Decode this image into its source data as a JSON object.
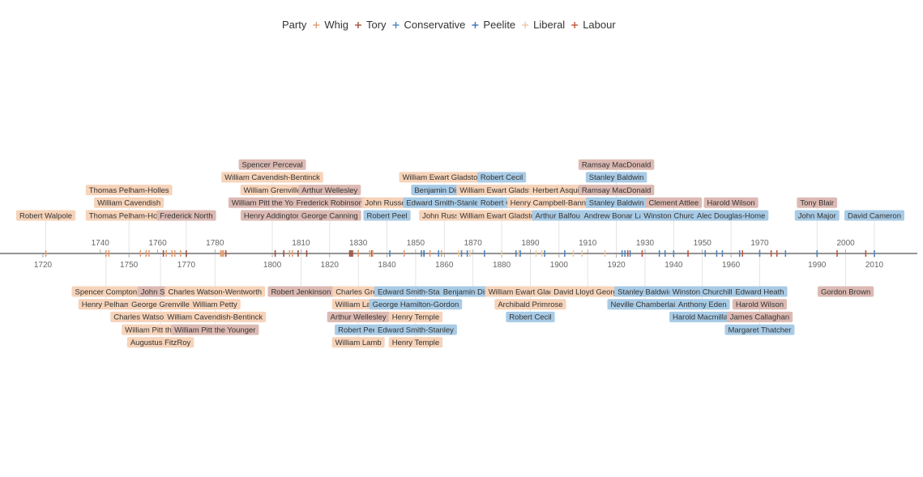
{
  "chart_data": {
    "type": "timeline",
    "title": "",
    "xlabel": "",
    "ylabel": "",
    "xlim": [
      1712,
      2019
    ],
    "grid": false,
    "legend": {
      "title": "Party",
      "placement": "top-center",
      "entries": [
        {
          "name": "Whig",
          "color": "#E39C70"
        },
        {
          "name": "Tory",
          "color": "#A0523F"
        },
        {
          "name": "Conservative",
          "color": "#4E86C0"
        },
        {
          "name": "Peelite",
          "color": "#3F74B3"
        },
        {
          "name": "Liberal",
          "color": "#F2C69C"
        },
        {
          "name": "Labour",
          "color": "#C0553B"
        }
      ]
    },
    "party_fill": {
      "Whig": "#F6D3B9",
      "Tory": "#DCBAB3",
      "Conservative": "#A8CBE6",
      "Peelite": "#A8CBE6",
      "Liberal": "#F6D3B9",
      "Labour": "#DCBAB3"
    },
    "ticks_top": [
      1740,
      1760,
      1780,
      1810,
      1830,
      1850,
      1870,
      1890,
      1910,
      1930,
      1950,
      1970,
      2000
    ],
    "ticks_bottom": [
      1720,
      1750,
      1770,
      1800,
      1820,
      1840,
      1860,
      1880,
      1900,
      1920,
      1940,
      1960,
      1990,
      2010
    ],
    "groups": [
      {
        "year": 1721,
        "side": "above",
        "names": [
          {
            "name": "Robert Walpole",
            "party": "Whig"
          }
        ]
      },
      {
        "year": 1742,
        "side": "below",
        "names": [
          {
            "name": "Spencer Compton",
            "party": "Whig"
          },
          {
            "name": "Henry Pelham",
            "party": "Whig"
          }
        ]
      },
      {
        "year": 1750,
        "side": "above",
        "names": [
          {
            "name": "Thomas Pelham-Holles",
            "party": "Whig"
          },
          {
            "name": "William Cavendish",
            "party": "Whig"
          },
          {
            "name": "Thomas Pelham-Holles",
            "party": "Whig"
          }
        ]
      },
      {
        "year": 1761,
        "side": "below",
        "names": [
          {
            "name": "John Stuart",
            "party": "Tory"
          },
          {
            "name": "George Grenville",
            "party": "Whig"
          },
          {
            "name": "Charles Watson-Wentworth",
            "party": "Whig"
          },
          {
            "name": "William Pitt the Elder",
            "party": "Whig"
          },
          {
            "name": "Augustus FitzRoy",
            "party": "Whig"
          }
        ]
      },
      {
        "year": 1770,
        "side": "above",
        "names": [
          {
            "name": "Frederick North",
            "party": "Tory"
          }
        ]
      },
      {
        "year": 1780,
        "side": "below",
        "names": [
          {
            "name": "Charles Watson-Wentworth",
            "party": "Whig"
          },
          {
            "name": "William Petty",
            "party": "Whig"
          },
          {
            "name": "William Cavendish-Bentinck",
            "party": "Whig"
          },
          {
            "name": "William Pitt the Younger",
            "party": "Tory"
          }
        ]
      },
      {
        "year": 1800,
        "side": "above",
        "names": [
          {
            "name": "Spencer Perceval",
            "party": "Tory"
          },
          {
            "name": "William Cavendish-Bentinck",
            "party": "Whig"
          },
          {
            "name": "William Grenville",
            "party": "Whig"
          },
          {
            "name": "William Pitt the Younger",
            "party": "Tory"
          },
          {
            "name": "Henry Addington",
            "party": "Tory"
          }
        ]
      },
      {
        "year": 1810,
        "side": "below",
        "names": [
          {
            "name": "Robert Jenkinson",
            "party": "Tory"
          }
        ]
      },
      {
        "year": 1820,
        "side": "above",
        "names": [
          {
            "name": "Arthur Wellesley",
            "party": "Tory"
          },
          {
            "name": "Frederick Robinson",
            "party": "Tory"
          },
          {
            "name": "George Canning",
            "party": "Tory"
          }
        ]
      },
      {
        "year": 1830,
        "side": "below",
        "names": [
          {
            "name": "Charles Grey",
            "party": "Whig"
          },
          {
            "name": "William Lamb",
            "party": "Whig"
          },
          {
            "name": "Arthur Wellesley",
            "party": "Tory"
          },
          {
            "name": "Robert Peel",
            "party": "Conservative"
          },
          {
            "name": "William Lamb",
            "party": "Whig"
          }
        ]
      },
      {
        "year": 1840,
        "side": "above",
        "names": [
          {
            "name": "John Russell",
            "party": "Whig"
          },
          {
            "name": "Robert Peel",
            "party": "Conservative"
          }
        ]
      },
      {
        "year": 1850,
        "side": "below",
        "names": [
          {
            "name": "Edward Smith-Stanley",
            "party": "Conservative"
          },
          {
            "name": "George Hamilton-Gordon",
            "party": "Peelite"
          },
          {
            "name": "Henry Temple",
            "party": "Whig"
          },
          {
            "name": "Edward Smith-Stanley",
            "party": "Conservative"
          },
          {
            "name": "Henry Temple",
            "party": "Whig"
          }
        ]
      },
      {
        "year": 1860,
        "side": "above",
        "names": [
          {
            "name": "William Ewart Gladstone",
            "party": "Liberal"
          },
          {
            "name": "Benjamin Disraeli",
            "party": "Conservative"
          },
          {
            "name": "Edward Smith-Stanley",
            "party": "Conservative"
          },
          {
            "name": "John Russell",
            "party": "Liberal"
          }
        ]
      },
      {
        "year": 1870,
        "side": "below",
        "names": [
          {
            "name": "Benjamin Disraeli",
            "party": "Conservative"
          }
        ]
      },
      {
        "year": 1880,
        "side": "above",
        "names": [
          {
            "name": "Robert Cecil",
            "party": "Conservative"
          },
          {
            "name": "William Ewart Gladstone",
            "party": "Liberal"
          },
          {
            "name": "Robert Cecil",
            "party": "Conservative"
          },
          {
            "name": "William Ewart Gladstone",
            "party": "Liberal"
          }
        ]
      },
      {
        "year": 1890,
        "side": "below",
        "names": [
          {
            "name": "William Ewart Gladstone",
            "party": "Liberal"
          },
          {
            "name": "Archibald Primrose",
            "party": "Liberal"
          },
          {
            "name": "Robert Cecil",
            "party": "Conservative"
          }
        ]
      },
      {
        "year": 1900,
        "side": "above",
        "names": [
          {
            "name": "Herbert Asquith",
            "party": "Liberal"
          },
          {
            "name": "Henry Campbell-Bannerman",
            "party": "Liberal"
          },
          {
            "name": "Arthur Balfour",
            "party": "Conservative"
          }
        ]
      },
      {
        "year": 1910,
        "side": "below",
        "names": [
          {
            "name": "David Lloyd George",
            "party": "Liberal"
          }
        ]
      },
      {
        "year": 1920,
        "side": "above",
        "names": [
          {
            "name": "Ramsay MacDonald",
            "party": "Labour"
          },
          {
            "name": "Stanley Baldwin",
            "party": "Conservative"
          },
          {
            "name": "Ramsay MacDonald",
            "party": "Labour"
          },
          {
            "name": "Stanley Baldwin",
            "party": "Conservative"
          },
          {
            "name": "Andrew Bonar Law",
            "party": "Conservative"
          }
        ]
      },
      {
        "year": 1930,
        "side": "below",
        "names": [
          {
            "name": "Stanley Baldwin",
            "party": "Conservative"
          },
          {
            "name": "Neville Chamberlain",
            "party": "Conservative"
          }
        ]
      },
      {
        "year": 1940,
        "side": "above",
        "names": [
          {
            "name": "Clement Attlee",
            "party": "Labour"
          },
          {
            "name": "Winston Churchill",
            "party": "Conservative"
          }
        ]
      },
      {
        "year": 1950,
        "side": "below",
        "names": [
          {
            "name": "Winston Churchill",
            "party": "Conservative"
          },
          {
            "name": "Anthony Eden",
            "party": "Conservative"
          },
          {
            "name": "Harold Macmillan",
            "party": "Conservative"
          }
        ]
      },
      {
        "year": 1960,
        "side": "above",
        "names": [
          {
            "name": "Harold Wilson",
            "party": "Labour"
          },
          {
            "name": "Alec Douglas-Home",
            "party": "Conservative"
          }
        ]
      },
      {
        "year": 1970,
        "side": "below",
        "names": [
          {
            "name": "Edward Heath",
            "party": "Conservative"
          },
          {
            "name": "Harold Wilson",
            "party": "Labour"
          },
          {
            "name": "James Callaghan",
            "party": "Labour"
          },
          {
            "name": "Margaret Thatcher",
            "party": "Conservative"
          }
        ]
      },
      {
        "year": 1990,
        "side": "above",
        "names": [
          {
            "name": "Tony Blair",
            "party": "Labour"
          },
          {
            "name": "John Major",
            "party": "Conservative"
          }
        ]
      },
      {
        "year": 2000,
        "side": "below",
        "names": [
          {
            "name": "Gordon Brown",
            "party": "Labour"
          }
        ]
      },
      {
        "year": 2010,
        "side": "above",
        "names": [
          {
            "name": "David Cameron",
            "party": "Conservative"
          }
        ]
      }
    ],
    "events": [
      {
        "year": 1721,
        "party": "Whig"
      },
      {
        "year": 1742,
        "party": "Whig"
      },
      {
        "year": 1743,
        "party": "Whig"
      },
      {
        "year": 1754,
        "party": "Whig"
      },
      {
        "year": 1756,
        "party": "Whig"
      },
      {
        "year": 1757,
        "party": "Whig"
      },
      {
        "year": 1762,
        "party": "Tory"
      },
      {
        "year": 1763,
        "party": "Whig"
      },
      {
        "year": 1765,
        "party": "Whig"
      },
      {
        "year": 1766,
        "party": "Whig"
      },
      {
        "year": 1768,
        "party": "Whig"
      },
      {
        "year": 1770,
        "party": "Tory"
      },
      {
        "year": 1782,
        "party": "Whig"
      },
      {
        "year": 1782.5,
        "party": "Whig"
      },
      {
        "year": 1783,
        "party": "Whig"
      },
      {
        "year": 1783.8,
        "party": "Tory"
      },
      {
        "year": 1801,
        "party": "Tory"
      },
      {
        "year": 1804,
        "party": "Tory"
      },
      {
        "year": 1806,
        "party": "Whig"
      },
      {
        "year": 1807,
        "party": "Whig"
      },
      {
        "year": 1809,
        "party": "Tory"
      },
      {
        "year": 1812,
        "party": "Tory"
      },
      {
        "year": 1827,
        "party": "Tory"
      },
      {
        "year": 1827.5,
        "party": "Tory"
      },
      {
        "year": 1828,
        "party": "Tory"
      },
      {
        "year": 1830,
        "party": "Whig"
      },
      {
        "year": 1834,
        "party": "Whig"
      },
      {
        "year": 1834.7,
        "party": "Tory"
      },
      {
        "year": 1834.9,
        "party": "Conservative"
      },
      {
        "year": 1835,
        "party": "Whig"
      },
      {
        "year": 1841,
        "party": "Conservative"
      },
      {
        "year": 1846,
        "party": "Whig"
      },
      {
        "year": 1852,
        "party": "Conservative"
      },
      {
        "year": 1852.9,
        "party": "Peelite"
      },
      {
        "year": 1855,
        "party": "Whig"
      },
      {
        "year": 1858,
        "party": "Conservative"
      },
      {
        "year": 1859,
        "party": "Whig"
      },
      {
        "year": 1865,
        "party": "Liberal"
      },
      {
        "year": 1866,
        "party": "Conservative"
      },
      {
        "year": 1868,
        "party": "Conservative"
      },
      {
        "year": 1868.9,
        "party": "Liberal"
      },
      {
        "year": 1874,
        "party": "Conservative"
      },
      {
        "year": 1880,
        "party": "Liberal"
      },
      {
        "year": 1885,
        "party": "Conservative"
      },
      {
        "year": 1886,
        "party": "Liberal"
      },
      {
        "year": 1886.5,
        "party": "Conservative"
      },
      {
        "year": 1892,
        "party": "Liberal"
      },
      {
        "year": 1894,
        "party": "Liberal"
      },
      {
        "year": 1895,
        "party": "Conservative"
      },
      {
        "year": 1902,
        "party": "Conservative"
      },
      {
        "year": 1905,
        "party": "Liberal"
      },
      {
        "year": 1908,
        "party": "Liberal"
      },
      {
        "year": 1916,
        "party": "Liberal"
      },
      {
        "year": 1922,
        "party": "Conservative"
      },
      {
        "year": 1923,
        "party": "Conservative"
      },
      {
        "year": 1924,
        "party": "Labour"
      },
      {
        "year": 1924.8,
        "party": "Conservative"
      },
      {
        "year": 1929,
        "party": "Labour"
      },
      {
        "year": 1935,
        "party": "Conservative"
      },
      {
        "year": 1937,
        "party": "Conservative"
      },
      {
        "year": 1940,
        "party": "Conservative"
      },
      {
        "year": 1945,
        "party": "Labour"
      },
      {
        "year": 1951,
        "party": "Conservative"
      },
      {
        "year": 1955,
        "party": "Conservative"
      },
      {
        "year": 1957,
        "party": "Conservative"
      },
      {
        "year": 1963,
        "party": "Conservative"
      },
      {
        "year": 1964,
        "party": "Labour"
      },
      {
        "year": 1970,
        "party": "Conservative"
      },
      {
        "year": 1974,
        "party": "Labour"
      },
      {
        "year": 1976,
        "party": "Labour"
      },
      {
        "year": 1979,
        "party": "Conservative"
      },
      {
        "year": 1990,
        "party": "Conservative"
      },
      {
        "year": 1997,
        "party": "Labour"
      },
      {
        "year": 2007,
        "party": "Labour"
      },
      {
        "year": 2010,
        "party": "Conservative"
      }
    ]
  }
}
